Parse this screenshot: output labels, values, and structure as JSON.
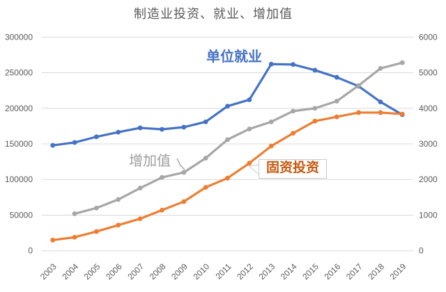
{
  "chart_data": {
    "type": "line",
    "title": "制造业投资、就业、增加值",
    "categories": [
      "2003",
      "2004",
      "2005",
      "2006",
      "2007",
      "2008",
      "2009",
      "2010",
      "2011",
      "2012",
      "2013",
      "2014",
      "2015",
      "2016",
      "2017",
      "2018",
      "2019"
    ],
    "left_axis": {
      "min": 0,
      "max": 300000,
      "ticks": [
        "0",
        "50000",
        "100000",
        "150000",
        "200000",
        "250000",
        "300000"
      ]
    },
    "right_axis": {
      "min": 0,
      "max": 6000,
      "ticks": [
        "0",
        "1000",
        "2000",
        "3000",
        "4000",
        "5000",
        "6000"
      ]
    },
    "grid": true,
    "legend_position": "none (inline series labels)",
    "series": [
      {
        "name": "单位就业",
        "axis": "right",
        "color": "#4472C4",
        "values": [
          2960,
          3040,
          3200,
          3330,
          3450,
          3410,
          3470,
          3620,
          4060,
          4240,
          5240,
          5230,
          5070,
          4870,
          4620,
          4180,
          3820
        ]
      },
      {
        "name": "增加值",
        "axis": "left",
        "color": "#A6A6A6",
        "values": [
          null,
          52000,
          60000,
          72000,
          88000,
          103000,
          110000,
          130000,
          156000,
          171000,
          181000,
          196000,
          200000,
          210000,
          232000,
          256000,
          264000
        ]
      },
      {
        "name": "固资投资",
        "axis": "left",
        "color": "#ED7D31",
        "values": [
          15000,
          19000,
          27000,
          36000,
          45000,
          57000,
          69000,
          89000,
          102000,
          123000,
          147000,
          165000,
          182000,
          188000,
          194000,
          194000,
          192000
        ]
      }
    ]
  }
}
